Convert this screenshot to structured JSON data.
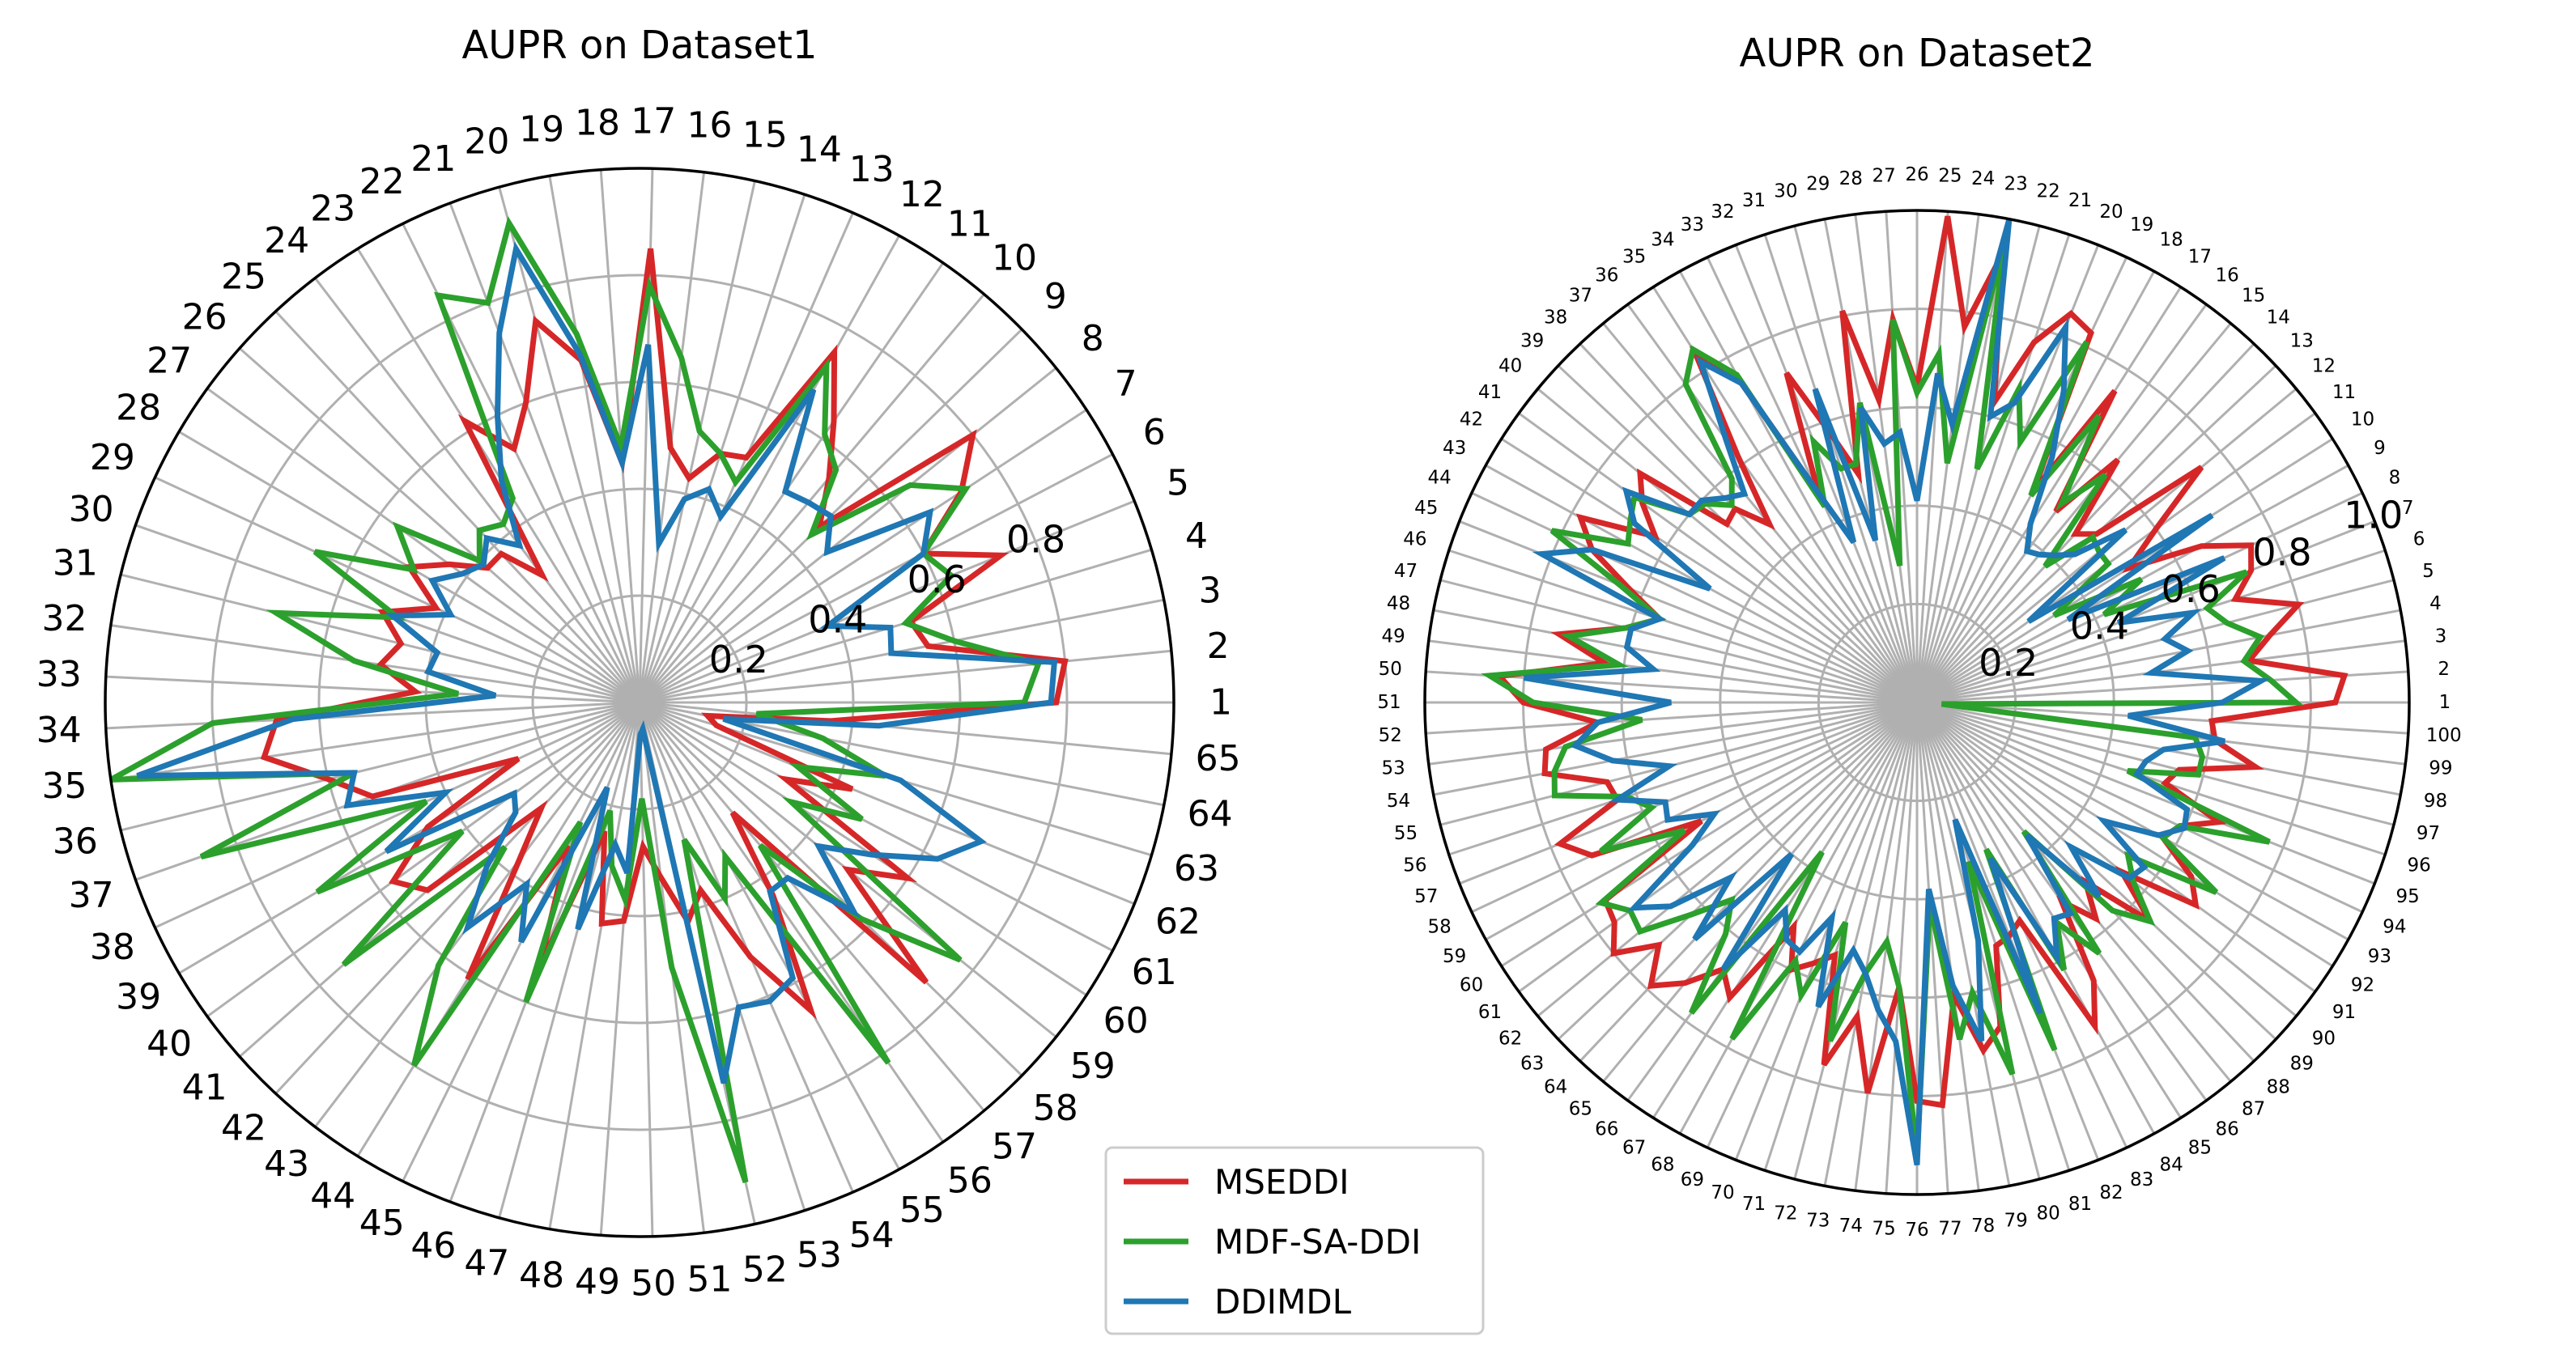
{
  "series_meta": [
    {
      "name": "MSEDDI",
      "color": "#d62728"
    },
    {
      "name": "MDF-SA-DDI",
      "color": "#2ca02c"
    },
    {
      "name": "DDIMDL",
      "color": "#1f77b4"
    }
  ],
  "legend": {
    "labels": [
      "MSEDDI",
      "MDF-SA-DDI",
      "DDIMDL"
    ]
  },
  "chart_data": [
    {
      "type": "radar",
      "title": "AUPR on Dataset1",
      "rlim": [
        0,
        1.0
      ],
      "r_ticks": [
        0.2,
        0.4,
        0.6,
        0.8
      ],
      "r_tick_labels": [
        "0.2",
        "0.4",
        "0.6",
        "0.8"
      ],
      "grid": true,
      "categories": [
        "1",
        "2",
        "3",
        "4",
        "5",
        "6",
        "7",
        "8",
        "9",
        "10",
        "11",
        "12",
        "13",
        "14",
        "15",
        "16",
        "17",
        "18",
        "19",
        "20",
        "21",
        "22",
        "23",
        "24",
        "25",
        "26",
        "27",
        "28",
        "29",
        "30",
        "31",
        "32",
        "33",
        "34",
        "35",
        "36",
        "37",
        "38",
        "39",
        "40",
        "41",
        "42",
        "43",
        "44",
        "45",
        "46",
        "47",
        "48",
        "49",
        "50",
        "51",
        "52",
        "53",
        "54",
        "55",
        "56",
        "57",
        "58",
        "59",
        "60",
        "61",
        "62",
        "63",
        "64",
        "65"
      ],
      "series": [
        {
          "name": "MSEDDI",
          "values": [
            0.78,
            0.8,
            0.55,
            0.53,
            0.73,
            0.6,
            0.72,
            0.8,
            0.47,
            0.55,
            0.64,
            0.75,
            0.5,
            0.49,
            0.43,
            0.48,
            0.85,
            0.45,
            0.65,
            0.74,
            0.6,
            0.53,
            0.62,
            0.3,
            0.38,
            0.38,
            0.44,
            0.5,
            0.42,
            0.51,
            0.46,
            0.49,
            0.42,
            0.68,
            0.71,
            0.6,
            0.53,
            0.25,
            0.46,
            0.57,
            0.53,
            0.27,
            0.37,
            0.61,
            0.3,
            0.53,
            0.25,
            0.42,
            0.41,
            0.27,
            0.33,
            0.42,
            0.37,
            0.52,
            0.66,
            0.44,
            0.27,
            0.75,
            0.5,
            0.6,
            0.31,
            0.43,
            0.15,
            0.13,
            0.36
          ]
        },
        {
          "name": "MDF-SA-DDI",
          "values": [
            0.72,
            0.75,
            0.6,
            0.52,
            0.63,
            0.6,
            0.73,
            0.65,
            0.45,
            0.57,
            0.61,
            0.72,
            0.45,
            0.49,
            0.52,
            0.65,
            0.78,
            0.48,
            0.7,
            0.93,
            0.8,
            0.85,
            0.45,
            0.42,
            0.44,
            0.4,
            0.56,
            0.49,
            0.67,
            0.48,
            0.7,
            0.54,
            0.34,
            0.8,
            1.0,
            0.55,
            0.87,
            0.44,
            0.7,
            0.41,
            0.74,
            0.37,
            0.62,
            0.8,
            0.25,
            0.6,
            0.21,
            0.31,
            0.37,
            0.18,
            0.5,
            0.92,
            0.27,
            0.4,
            0.33,
            0.82,
            0.35,
            0.58,
            0.77,
            0.34,
            0.47,
            0.32,
            0.48,
            0.35,
            0.22
          ]
        },
        {
          "name": "DDIMDL",
          "values": [
            0.77,
            0.78,
            0.48,
            0.49,
            0.38,
            0.6,
            0.65,
            0.45,
            0.5,
            0.49,
            0.48,
            0.67,
            0.38,
            0.42,
            0.39,
            0.3,
            0.67,
            0.45,
            0.66,
            0.88,
            0.74,
            0.6,
            0.49,
            0.37,
            0.42,
            0.39,
            0.41,
            0.45,
            0.39,
            0.49,
            0.39,
            0.4,
            0.27,
            0.65,
            0.95,
            0.55,
            0.58,
            0.4,
            0.55,
            0.29,
            0.31,
            0.42,
            0.53,
            0.4,
            0.5,
            0.17,
            0.44,
            0.27,
            0.32,
            0.06,
            0.05,
            0.73,
            0.6,
            0.61,
            0.59,
            0.43,
            0.43,
            0.56,
            0.43,
            0.52,
            0.63,
            0.69,
            0.51,
            0.16,
            0.45
          ]
        }
      ]
    },
    {
      "type": "radar",
      "title": "AUPR on Dataset2",
      "rlim": [
        0,
        1.0
      ],
      "r_ticks": [
        0.2,
        0.4,
        0.6,
        0.8,
        1.0
      ],
      "r_tick_labels": [
        "0.2",
        "0.4",
        "0.6",
        "0.8",
        "1.0"
      ],
      "grid": true,
      "categories": [
        "1",
        "2",
        "3",
        "4",
        "5",
        "6",
        "7",
        "8",
        "9",
        "10",
        "11",
        "12",
        "13",
        "14",
        "15",
        "16",
        "17",
        "18",
        "19",
        "20",
        "21",
        "22",
        "23",
        "24",
        "25",
        "26",
        "27",
        "28",
        "29",
        "30",
        "31",
        "32",
        "33",
        "34",
        "35",
        "36",
        "37",
        "38",
        "39",
        "40",
        "41",
        "42",
        "43",
        "44",
        "45",
        "46",
        "47",
        "48",
        "49",
        "50",
        "51",
        "52",
        "53",
        "54",
        "55",
        "56",
        "57",
        "58",
        "59",
        "60",
        "61",
        "62",
        "63",
        "64",
        "65",
        "66",
        "67",
        "68",
        "69",
        "70",
        "71",
        "72",
        "73",
        "74",
        "75",
        "76",
        "77",
        "78",
        "79",
        "80",
        "81",
        "82",
        "83",
        "84",
        "85",
        "86",
        "87",
        "88",
        "89",
        "90",
        "91",
        "92",
        "93",
        "94",
        "95",
        "96",
        "97",
        "98",
        "99",
        "100"
      ],
      "series": [
        {
          "name": "MSEDDI",
          "values": [
            0.85,
            0.87,
            0.68,
            0.73,
            0.8,
            0.68,
            0.73,
            0.75,
            0.66,
            0.51,
            0.6,
            0.75,
            0.5,
            0.47,
            0.64,
            0.48,
            0.75,
            0.49,
            0.83,
            0.85,
            0.77,
            0.63,
            0.93,
            0.77,
            0.99,
            0.64,
            0.78,
            0.62,
            0.81,
            0.48,
            0.58,
            0.72,
            0.47,
            0.74,
            0.84,
            0.62,
            0.47,
            0.54,
            0.53,
            0.73,
            0.69,
            0.63,
            0.78,
            0.73,
            0.63,
            0.55,
            0.61,
            0.74,
            0.64,
            0.85,
            0.8,
            0.65,
            0.76,
            0.77,
            0.65,
            0.64,
            0.78,
            0.73,
            0.5,
            0.75,
            0.76,
            0.8,
            0.72,
            0.79,
            0.74,
            0.67,
            0.71,
            0.52,
            0.6,
            0.57,
            0.54,
            0.76,
            0.65,
            0.8,
            0.58,
            0.81,
            0.82,
            0.6,
            0.72,
            0.68,
            0.52,
            0.51,
            0.49,
            0.75,
            0.67,
            0.5,
            0.57,
            0.5,
            0.65,
            0.54,
            0.7,
            0.66,
            0.57,
            0.59,
            0.66,
            0.53,
            0.55,
            0.7,
            0.61,
            0.6
          ]
        },
        {
          "name": "MDF-SA-DDI",
          "values": [
            0.77,
            0.72,
            0.67,
            0.71,
            0.65,
            0.62,
            0.72,
            0.42,
            0.52,
            0.33,
            0.48,
            0.48,
            0.49,
            0.38,
            0.6,
            0.5,
            0.69,
            0.48,
            0.81,
            0.57,
            0.67,
            0.49,
            0.95,
            0.49,
            0.71,
            0.63,
            0.78,
            0.28,
            0.62,
            0.5,
            0.5,
            0.57,
            0.44,
            0.76,
            0.85,
            0.8,
            0.59,
            0.55,
            0.59,
            0.6,
            0.71,
            0.69,
            0.67,
            0.82,
            0.65,
            0.55,
            0.61,
            0.72,
            0.61,
            0.87,
            0.78,
            0.56,
            0.72,
            0.75,
            0.76,
            0.62,
            0.58,
            0.71,
            0.54,
            0.76,
            0.72,
            0.73,
            0.63,
            0.55,
            0.61,
            0.78,
            0.36,
            0.78,
            0.58,
            0.64,
            0.47,
            0.71,
            0.56,
            0.49,
            0.58,
            0.92,
            0.41,
            0.69,
            0.6,
            0.78,
            0.34,
            0.76,
            0.33,
            0.62,
            0.53,
            0.63,
            0.34,
            0.58,
            0.65,
            0.57,
            0.53,
            0.72,
            0.57,
            0.59,
            0.77,
            0.45,
            0.59,
            0.59,
            0.57,
            0.05
          ]
        },
        {
          "name": "DDIMDL",
          "values": [
            0.62,
            0.7,
            0.48,
            0.56,
            0.52,
            0.59,
            0.44,
            0.69,
            0.35,
            0.71,
            0.28,
            0.55,
            0.44,
            0.41,
            0.39,
            0.38,
            0.43,
            0.57,
            0.7,
            0.82,
            0.64,
            0.6,
            1.0,
            0.57,
            0.67,
            0.41,
            0.55,
            0.53,
            0.61,
            0.34,
            0.67,
            0.35,
            0.47,
            0.74,
            0.82,
            0.66,
            0.55,
            0.57,
            0.6,
            0.6,
            0.73,
            0.68,
            0.48,
            0.73,
            0.82,
            0.55,
            0.6,
            0.6,
            0.54,
            0.8,
            0.5,
            0.65,
            0.7,
            0.63,
            0.52,
            0.64,
            0.55,
            0.56,
            0.47,
            0.54,
            0.71,
            0.65,
            0.52,
            0.66,
            0.4,
            0.67,
            0.5,
            0.55,
            0.56,
            0.47,
            0.65,
            0.52,
            0.56,
            0.63,
            0.69,
            0.94,
            0.38,
            0.58,
            0.7,
            0.5,
            0.25,
            0.68,
            0.35,
            0.59,
            0.52,
            0.53,
            0.35,
            0.54,
            0.43,
            0.56,
            0.57,
            0.45,
            0.56,
            0.6,
            0.59,
            0.47,
            0.48,
            0.51,
            0.63,
            0.43
          ]
        }
      ]
    }
  ]
}
